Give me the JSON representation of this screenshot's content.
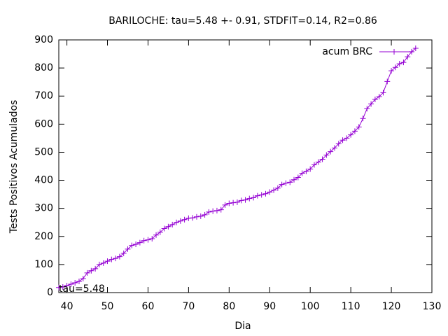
{
  "chart_data": {
    "type": "line",
    "title": "BARILOCHE: tau=5.48 +- 0.91, STDFIT=0.14, R2=0.86",
    "xlabel": "Dia",
    "ylabel": "Tests Positivos Acumulados",
    "annotation": "tau=5.48",
    "x": [
      38,
      39,
      40,
      41,
      42,
      43,
      44,
      45,
      46,
      47,
      48,
      49,
      50,
      51,
      52,
      53,
      54,
      55,
      56,
      57,
      58,
      59,
      60,
      61,
      62,
      63,
      64,
      65,
      66,
      67,
      68,
      69,
      70,
      71,
      72,
      73,
      74,
      75,
      76,
      77,
      78,
      79,
      80,
      81,
      82,
      83,
      84,
      85,
      86,
      87,
      88,
      89,
      90,
      91,
      92,
      93,
      94,
      95,
      96,
      97,
      98,
      99,
      100,
      101,
      102,
      103,
      104,
      105,
      106,
      107,
      108,
      109,
      110,
      111,
      112,
      113,
      114,
      115,
      116,
      117,
      118,
      119,
      120,
      121,
      122,
      123,
      124,
      125,
      126
    ],
    "series": [
      {
        "name": "acum BRC",
        "color": "#9400d3",
        "values": [
          18,
          20,
          25,
          30,
          35,
          40,
          50,
          70,
          78,
          85,
          100,
          105,
          112,
          118,
          122,
          128,
          140,
          155,
          168,
          172,
          178,
          185,
          188,
          192,
          205,
          215,
          228,
          235,
          242,
          250,
          255,
          260,
          265,
          266,
          270,
          272,
          277,
          287,
          290,
          292,
          295,
          312,
          318,
          320,
          322,
          328,
          330,
          335,
          338,
          345,
          348,
          352,
          358,
          365,
          372,
          385,
          390,
          393,
          402,
          410,
          425,
          432,
          440,
          455,
          465,
          475,
          490,
          502,
          515,
          530,
          543,
          550,
          562,
          575,
          590,
          620,
          655,
          672,
          688,
          698,
          712,
          752,
          790,
          802,
          815,
          820,
          840,
          858,
          870
        ]
      }
    ],
    "xlim": [
      38,
      130
    ],
    "xticks": [
      40,
      50,
      60,
      70,
      80,
      90,
      100,
      110,
      120,
      130
    ],
    "ylim": [
      0,
      900
    ],
    "yticks": [
      0,
      100,
      200,
      300,
      400,
      500,
      600,
      700,
      800,
      900
    ],
    "grid": false,
    "legend": "top-right"
  }
}
